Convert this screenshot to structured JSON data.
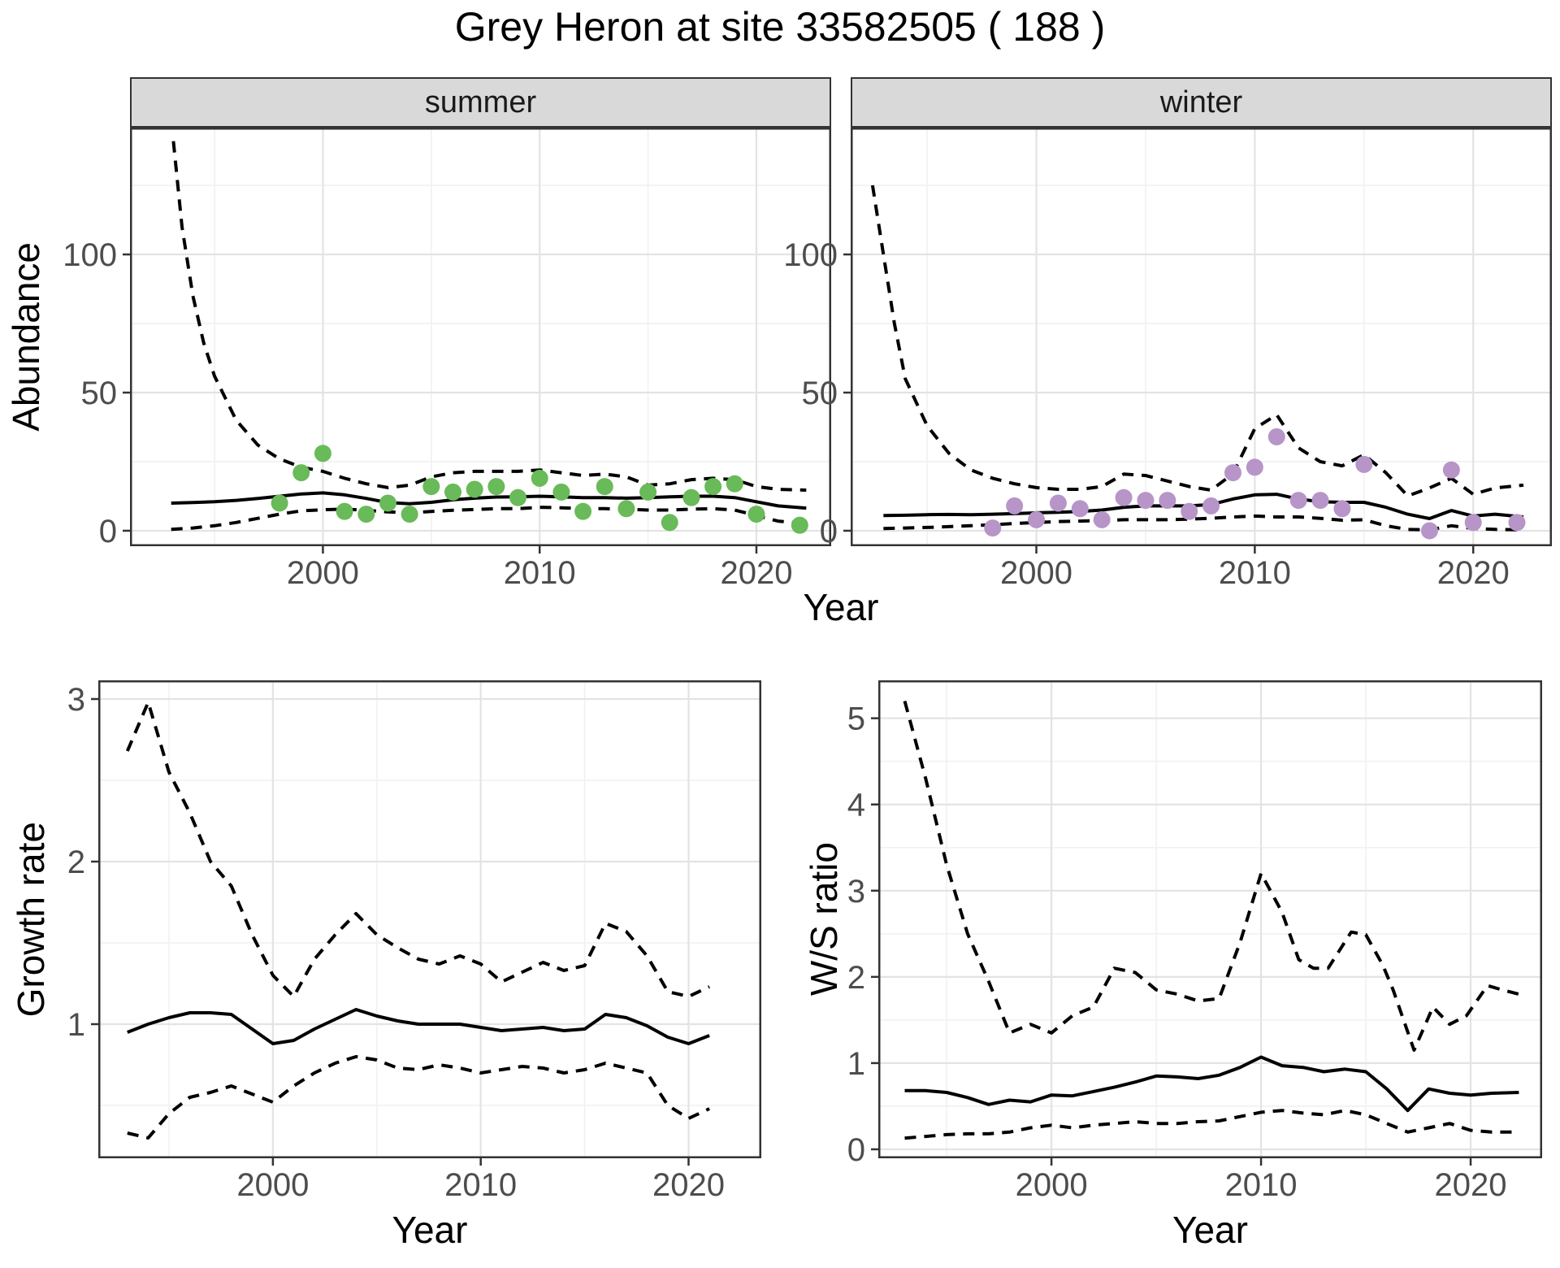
{
  "title": "Grey Heron at site 33582505 ( 188 )",
  "colors": {
    "summer_point": "#69BA58",
    "winter_point": "#B795C8",
    "line": "#000000",
    "strip_bg": "#D9D9D9",
    "panel_border": "#333333",
    "grid_major": "#E3E3E3",
    "grid_minor": "#F1F1F1",
    "tick_label": "#4D4D4D"
  },
  "chart_data": [
    {
      "id": "abundance-summer",
      "type": "line",
      "facet_label": "summer",
      "xlabel": "Year",
      "ylabel": "Abundance",
      "xlim": [
        1991.1,
        2023.45
      ],
      "ylim": [
        -5.6,
        145.9
      ],
      "x_ticks": [
        2000,
        2010,
        2020
      ],
      "x_minor": [
        1995,
        2005,
        2015
      ],
      "y_ticks": [
        0,
        50,
        100
      ],
      "y_minor": [
        25,
        75,
        125
      ],
      "grid": true,
      "legend": "none",
      "series": [
        {
          "name": "upper-95ci",
          "style": "dashed",
          "x": [
            1993.1,
            1993.5,
            1994,
            1994.5,
            1995,
            1996,
            1997,
            1998,
            1999,
            2000,
            2001,
            2002,
            2003,
            2004,
            2005,
            2006,
            2007,
            2008,
            2009,
            2010,
            2011,
            2012,
            2013,
            2014,
            2015,
            2016,
            2017,
            2018,
            2019,
            2020,
            2021,
            2022.3
          ],
          "y": [
            141,
            110,
            85,
            68,
            56,
            40,
            31,
            26,
            23,
            21.5,
            19,
            17,
            15.6,
            16.5,
            19.5,
            21,
            21.5,
            21.5,
            21.5,
            22,
            21,
            20,
            20.5,
            19.5,
            16.5,
            17,
            18.5,
            19,
            18.5,
            16,
            15,
            14.7
          ]
        },
        {
          "name": "lower-95ci",
          "style": "dashed",
          "x": [
            1993,
            1994,
            1995,
            1996,
            1997,
            1998,
            1999,
            2000,
            2001,
            2002,
            2003,
            2004,
            2005,
            2006,
            2007,
            2008,
            2009,
            2010,
            2011,
            2012,
            2013,
            2014,
            2015,
            2016,
            2017,
            2018,
            2019,
            2020,
            2021,
            2022.3
          ],
          "y": [
            0.5,
            1,
            1.8,
            3,
            4.5,
            6,
            7.2,
            7.6,
            7.8,
            7.4,
            6.8,
            6.5,
            7,
            7.4,
            7.7,
            8,
            8,
            8.5,
            8.3,
            8,
            8,
            7.8,
            7.5,
            7.5,
            7.8,
            8,
            7.5,
            5.5,
            3.5,
            2.5
          ]
        },
        {
          "name": "fit",
          "style": "solid",
          "x": [
            1993,
            1994,
            1995,
            1996,
            1997,
            1998,
            1999,
            2000,
            2001,
            2002,
            2003,
            2004,
            2005,
            2006,
            2007,
            2008,
            2009,
            2010,
            2011,
            2012,
            2013,
            2014,
            2015,
            2016,
            2017,
            2018,
            2019,
            2020,
            2021,
            2022.3
          ],
          "y": [
            10,
            10.2,
            10.5,
            11,
            11.7,
            12.5,
            13.3,
            13.7,
            13,
            11.7,
            10.2,
            9.8,
            10.3,
            11.2,
            11.8,
            12.2,
            12.3,
            12.5,
            12.3,
            12,
            12,
            11.8,
            12,
            12.3,
            12.5,
            12.5,
            12,
            10.5,
            9,
            8.2
          ]
        },
        {
          "name": "observations",
          "style": "points",
          "color_key": "summer_point",
          "x": [
            1998,
            1999,
            2000,
            2001,
            2002,
            2003,
            2004,
            2005,
            2006,
            2007,
            2008,
            2009,
            2010,
            2011,
            2012,
            2013,
            2014,
            2015,
            2016,
            2017,
            2018,
            2019,
            2020,
            2022
          ],
          "y": [
            10,
            21,
            28,
            7,
            6,
            10,
            6,
            16,
            14,
            15,
            16,
            12,
            19,
            14,
            7,
            16,
            8,
            14,
            3,
            12,
            16,
            17,
            6,
            2
          ]
        }
      ]
    },
    {
      "id": "abundance-winter",
      "type": "line",
      "facet_label": "winter",
      "xlabel": "Year",
      "ylabel": "Abundance",
      "xlim": [
        1991.5,
        2023.6
      ],
      "ylim": [
        -5.6,
        145.9
      ],
      "x_ticks": [
        2000,
        2010,
        2020
      ],
      "x_minor": [
        1995,
        2005,
        2015
      ],
      "y_ticks": [
        0,
        50,
        100
      ],
      "y_minor": [
        25,
        75,
        125
      ],
      "grid": true,
      "legend": "none",
      "series": [
        {
          "name": "upper-95ci",
          "style": "dashed",
          "x": [
            1992.5,
            1993,
            1993.5,
            1994,
            1995,
            1996,
            1997,
            1998,
            1999,
            2000,
            2001,
            2002,
            2003,
            2004,
            2005,
            2006,
            2007,
            2008,
            2009,
            2010,
            2011,
            2012,
            2013,
            2014,
            2015,
            2016,
            2017,
            2018,
            2019,
            2020,
            2021,
            2022.3
          ],
          "y": [
            125,
            100,
            75,
            55,
            38,
            28,
            22,
            19,
            17,
            15.6,
            15,
            15,
            16,
            20.5,
            20,
            18,
            16,
            14.7,
            20.6,
            37,
            42,
            30,
            25,
            23.5,
            27.5,
            21,
            12.6,
            15.5,
            19,
            13.2,
            15.5,
            16.5
          ]
        },
        {
          "name": "lower-95ci",
          "style": "dashed",
          "x": [
            1993,
            1994,
            1995,
            1996,
            1997,
            1998,
            1999,
            2000,
            2001,
            2002,
            2003,
            2004,
            2005,
            2006,
            2007,
            2008,
            2009,
            2010,
            2011,
            2012,
            2013,
            2014,
            2015,
            2016,
            2017,
            2018,
            2019,
            2020,
            2021,
            2022.3
          ],
          "y": [
            0.8,
            1,
            1.2,
            1.5,
            1.8,
            2.2,
            2.6,
            3,
            3.3,
            3.5,
            3.7,
            4,
            4,
            4,
            4.2,
            4.5,
            5,
            5.3,
            5,
            5,
            4.5,
            3.8,
            4,
            1.8,
            0.5,
            0.3,
            1.8,
            0.8,
            0.5,
            0.3
          ]
        },
        {
          "name": "fit",
          "style": "solid",
          "x": [
            1993,
            1994,
            1995,
            1996,
            1997,
            1998,
            1999,
            2000,
            2001,
            2002,
            2003,
            2004,
            2005,
            2006,
            2007,
            2008,
            2009,
            2010,
            2011,
            2012,
            2013,
            2014,
            2015,
            2016,
            2017,
            2018,
            2019,
            2020,
            2021,
            2022.3
          ],
          "y": [
            5.5,
            5.6,
            5.8,
            5.9,
            5.8,
            6,
            6.2,
            6.5,
            6.7,
            7,
            7.5,
            8.5,
            9,
            9,
            9,
            9.5,
            11.5,
            13,
            13.2,
            11.5,
            10.5,
            10.3,
            10.3,
            8.5,
            6,
            4.4,
            7.3,
            5.3,
            6,
            5
          ]
        },
        {
          "name": "observations",
          "style": "points",
          "color_key": "winter_point",
          "x": [
            1998,
            1999,
            2000,
            2001,
            2002,
            2003,
            2004,
            2005,
            2006,
            2007,
            2008,
            2009,
            2010,
            2011,
            2012,
            2013,
            2014,
            2015,
            2018,
            2019,
            2020,
            2022
          ],
          "y": [
            1,
            9,
            4,
            10,
            8,
            4,
            12,
            11,
            11,
            7,
            9,
            21,
            23,
            34,
            11,
            11,
            8,
            24,
            0,
            22,
            3,
            3
          ]
        }
      ]
    },
    {
      "id": "growth-rate",
      "type": "line",
      "facet_label": "",
      "xlabel": "Year",
      "ylabel": "Growth rate",
      "xlim": [
        1991.6,
        2023.5
      ],
      "ylim": [
        0.175,
        3.115
      ],
      "x_ticks": [
        2000,
        2010,
        2020
      ],
      "x_minor": [
        1995,
        2005,
        2015
      ],
      "y_ticks": [
        1,
        2,
        3
      ],
      "y_minor": [
        0.5,
        1.5,
        2.5
      ],
      "grid": true,
      "legend": "none",
      "series": [
        {
          "name": "upper-95ci",
          "style": "dashed",
          "x": [
            1993,
            1994,
            1995,
            1996,
            1997,
            1998,
            1999,
            2000,
            2001,
            2002,
            2003,
            2004,
            2005,
            2006,
            2007,
            2008,
            2009,
            2010,
            2011,
            2012,
            2013,
            2014,
            2015,
            2016,
            2017,
            2018,
            2019,
            2020,
            2021
          ],
          "y": [
            2.68,
            2.98,
            2.55,
            2.3,
            2.0,
            1.85,
            1.55,
            1.3,
            1.17,
            1.4,
            1.55,
            1.68,
            1.55,
            1.47,
            1.4,
            1.37,
            1.42,
            1.37,
            1.26,
            1.32,
            1.38,
            1.33,
            1.36,
            1.62,
            1.57,
            1.42,
            1.2,
            1.17,
            1.23
          ]
        },
        {
          "name": "lower-95ci",
          "style": "dashed",
          "x": [
            1993,
            1994,
            1995,
            1996,
            1997,
            1998,
            1999,
            2000,
            2001,
            2002,
            2003,
            2004,
            2005,
            2006,
            2007,
            2008,
            2009,
            2010,
            2011,
            2012,
            2013,
            2014,
            2015,
            2016,
            2017,
            2018,
            2019,
            2020,
            2021
          ],
          "y": [
            0.33,
            0.3,
            0.45,
            0.55,
            0.58,
            0.62,
            0.57,
            0.52,
            0.62,
            0.7,
            0.76,
            0.8,
            0.78,
            0.73,
            0.72,
            0.75,
            0.73,
            0.7,
            0.72,
            0.74,
            0.73,
            0.7,
            0.72,
            0.76,
            0.73,
            0.7,
            0.5,
            0.42,
            0.48
          ]
        },
        {
          "name": "fit",
          "style": "solid",
          "x": [
            1993,
            1994,
            1995,
            1996,
            1997,
            1998,
            1999,
            2000,
            2001,
            2002,
            2003,
            2004,
            2005,
            2006,
            2007,
            2008,
            2009,
            2010,
            2011,
            2012,
            2013,
            2014,
            2015,
            2016,
            2017,
            2018,
            2019,
            2020,
            2021
          ],
          "y": [
            0.95,
            1.0,
            1.04,
            1.07,
            1.07,
            1.06,
            0.97,
            0.88,
            0.9,
            0.97,
            1.03,
            1.09,
            1.05,
            1.02,
            1.0,
            1.0,
            1.0,
            0.98,
            0.96,
            0.97,
            0.98,
            0.96,
            0.97,
            1.06,
            1.04,
            0.99,
            0.92,
            0.88,
            0.93
          ]
        }
      ]
    },
    {
      "id": "ws-ratio",
      "type": "line",
      "facet_label": "",
      "xlabel": "Year",
      "ylabel": "W/S ratio",
      "xlim": [
        1991.74,
        2023.41
      ],
      "ylim": [
        -0.104,
        5.44
      ],
      "x_ticks": [
        2000,
        2010,
        2020
      ],
      "x_minor": [
        1995,
        2005,
        2015
      ],
      "y_ticks": [
        0,
        1,
        2,
        3,
        4,
        5
      ],
      "y_minor": [
        0.5,
        1.5,
        2.5,
        3.5,
        4.5
      ],
      "grid": true,
      "legend": "none",
      "series": [
        {
          "name": "upper-95ci",
          "style": "dashed",
          "x": [
            1993,
            1994,
            1995,
            1996,
            1997,
            1998,
            1999,
            2000,
            2001,
            2002,
            2003,
            2004,
            2005,
            2006,
            2007,
            2008,
            2009,
            2010,
            2011,
            2011.8,
            2012.5,
            2013.2,
            2014.3,
            2015,
            2015.8,
            2016.3,
            2017.3,
            2018.2,
            2019,
            2019.8,
            2020.8,
            2021.5,
            2022.3
          ],
          "y": [
            5.2,
            4.3,
            3.3,
            2.5,
            1.95,
            1.35,
            1.45,
            1.35,
            1.55,
            1.65,
            2.1,
            2.05,
            1.85,
            1.8,
            1.72,
            1.75,
            2.4,
            3.2,
            2.75,
            2.2,
            2.1,
            2.1,
            2.52,
            2.49,
            2.14,
            1.85,
            1.15,
            1.65,
            1.45,
            1.55,
            1.9,
            1.85,
            1.8
          ]
        },
        {
          "name": "lower-95ci",
          "style": "dashed",
          "x": [
            1993,
            1994,
            1995,
            1996,
            1997,
            1998,
            1999,
            2000,
            2001,
            2002,
            2003,
            2004,
            2005,
            2006,
            2007,
            2008,
            2009,
            2010,
            2011,
            2012,
            2013,
            2014,
            2015,
            2016,
            2017,
            2018,
            2019,
            2020,
            2021,
            2022.3
          ],
          "y": [
            0.13,
            0.15,
            0.17,
            0.18,
            0.18,
            0.2,
            0.25,
            0.28,
            0.25,
            0.28,
            0.3,
            0.32,
            0.3,
            0.3,
            0.32,
            0.33,
            0.38,
            0.43,
            0.45,
            0.42,
            0.4,
            0.45,
            0.4,
            0.3,
            0.2,
            0.25,
            0.3,
            0.22,
            0.2,
            0.2
          ]
        },
        {
          "name": "fit",
          "style": "solid",
          "x": [
            1993,
            1994,
            1995,
            1996,
            1997,
            1998,
            1999,
            2000,
            2001,
            2002,
            2003,
            2004,
            2005,
            2006,
            2007,
            2008,
            2009,
            2010,
            2011,
            2012,
            2013,
            2014,
            2015,
            2016,
            2017,
            2018,
            2019,
            2020,
            2021,
            2022.3
          ],
          "y": [
            0.68,
            0.68,
            0.66,
            0.6,
            0.52,
            0.57,
            0.55,
            0.63,
            0.62,
            0.67,
            0.72,
            0.78,
            0.85,
            0.84,
            0.82,
            0.86,
            0.95,
            1.07,
            0.97,
            0.95,
            0.9,
            0.93,
            0.9,
            0.7,
            0.45,
            0.7,
            0.65,
            0.63,
            0.65,
            0.66
          ]
        }
      ]
    }
  ]
}
